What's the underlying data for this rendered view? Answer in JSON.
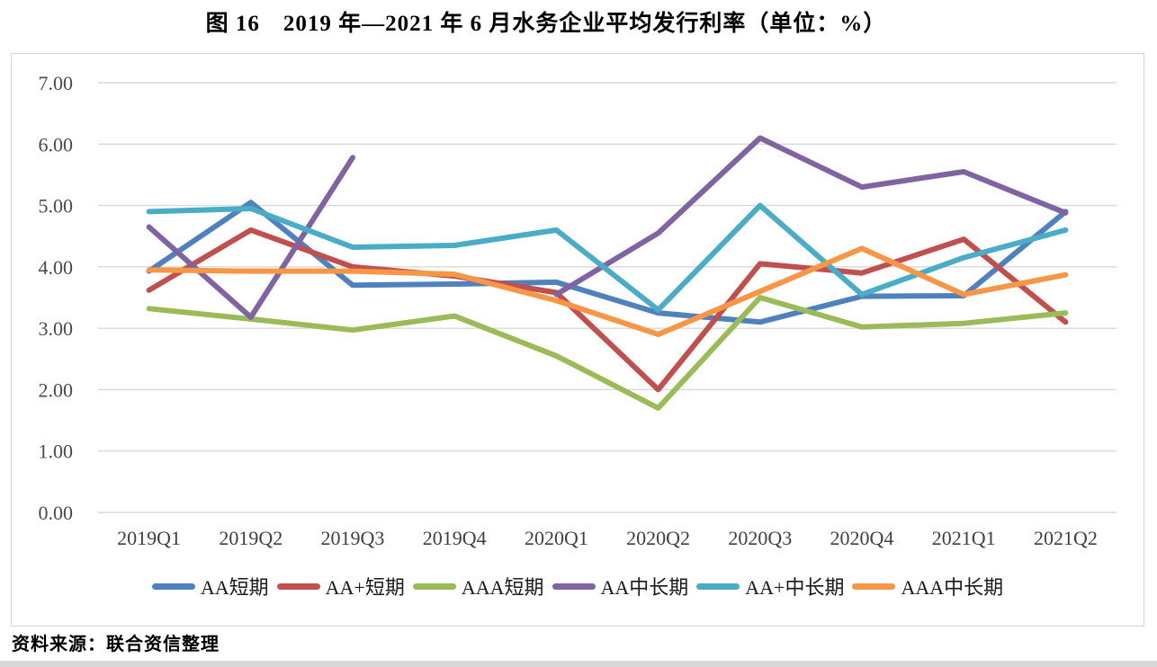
{
  "title": "图 16　2019 年—2021 年 6 月水务企业平均发行利率（单位：%）",
  "source_note": "资料来源：联合资信整理",
  "chart_data": {
    "type": "line",
    "title": "图 16　2019 年—2021 年 6 月水务企业平均发行利率（单位：%）",
    "unit": "%",
    "grid": true,
    "legend_position": "bottom",
    "ylim": [
      0,
      7
    ],
    "yticks": [
      "0.00",
      "1.00",
      "2.00",
      "3.00",
      "4.00",
      "5.00",
      "6.00",
      "7.00"
    ],
    "categories": [
      "2019Q1",
      "2019Q2",
      "2019Q3",
      "2019Q4",
      "2020Q1",
      "2020Q2",
      "2020Q3",
      "2020Q4",
      "2021Q1",
      "2021Q2"
    ],
    "series": [
      {
        "name": "AA短期",
        "color": "#4F81BD",
        "values": [
          3.93,
          5.05,
          3.7,
          3.72,
          3.75,
          3.25,
          3.1,
          3.52,
          3.53,
          4.9
        ]
      },
      {
        "name": "AA+短期",
        "color": "#C0504D",
        "values": [
          3.62,
          4.6,
          4.0,
          3.85,
          3.58,
          2.0,
          4.05,
          3.9,
          4.45,
          3.1
        ]
      },
      {
        "name": "AAA短期",
        "color": "#9BBB59",
        "values": [
          3.32,
          3.15,
          2.97,
          3.2,
          2.55,
          1.7,
          3.5,
          3.02,
          3.08,
          3.25
        ]
      },
      {
        "name": "AA中长期",
        "color": "#8064A2",
        "values": [
          4.65,
          3.18,
          5.78,
          null,
          3.55,
          4.55,
          6.1,
          5.3,
          5.55,
          4.88
        ]
      },
      {
        "name": "AA+中长期",
        "color": "#4BACC6",
        "values": [
          4.9,
          4.95,
          4.32,
          4.35,
          4.6,
          3.3,
          5.0,
          3.55,
          4.15,
          4.6
        ]
      },
      {
        "name": "AAA中长期",
        "color": "#F79646",
        "values": [
          3.95,
          3.93,
          3.93,
          3.88,
          3.45,
          2.9,
          3.6,
          4.3,
          3.55,
          3.87
        ]
      }
    ]
  }
}
